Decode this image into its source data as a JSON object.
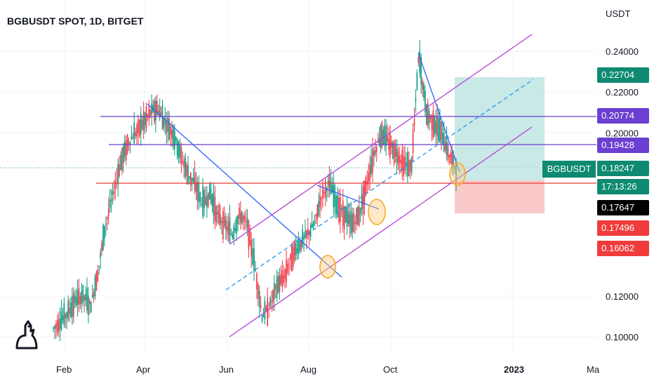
{
  "header": {
    "title": "BGBUSDT SPOT, 1D, BITGET",
    "unit": "USDT"
  },
  "chart_data": {
    "type": "candlestick",
    "y_axis_ticks": [
      "0.24000",
      "0.22000",
      "0.20000",
      "0.12000",
      "0.10000"
    ],
    "x_axis_ticks": [
      "Feb",
      "Apr",
      "Jun",
      "Aug",
      "Oct",
      "2023",
      "Ma"
    ],
    "price_labels": [
      {
        "name": "target",
        "text": "0.22704",
        "color": "#0e8a72"
      },
      {
        "name": "resistance-upper",
        "text": "0.20774",
        "color": "#6a3fd1"
      },
      {
        "name": "resistance-lower",
        "text": "0.19428",
        "color": "#6a3fd1"
      },
      {
        "name": "last-price",
        "text": "0.18247",
        "color": "#0e8a72"
      },
      {
        "name": "countdown",
        "text": "17:13:26",
        "color": "#0e8a72"
      },
      {
        "name": "crosshair",
        "text": "0.17647",
        "color": "#000000"
      },
      {
        "name": "support",
        "text": "0.17496",
        "color": "#ef3b3b"
      },
      {
        "name": "stop",
        "text": "0.16062",
        "color": "#ef3b3b"
      }
    ],
    "ticker_tag": "BGBUSDT",
    "series": [
      {
        "values_approx": [
          0.104,
          0.108,
          0.112,
          0.118,
          0.12,
          0.115,
          0.132,
          0.155,
          0.17,
          0.185,
          0.195,
          0.2,
          0.205,
          0.21,
          0.212,
          0.205,
          0.2,
          0.19,
          0.18,
          0.175,
          0.165,
          0.17,
          0.16,
          0.155,
          0.15,
          0.16,
          0.155,
          0.135,
          0.11,
          0.115,
          0.125,
          0.13,
          0.14,
          0.145,
          0.15,
          0.155,
          0.17,
          0.175,
          0.165,
          0.16,
          0.155,
          0.16,
          0.175,
          0.19,
          0.2,
          0.195,
          0.19,
          0.185,
          0.183,
          0.238,
          0.21,
          0.205,
          0.2,
          0.19,
          0.182
        ]
      }
    ],
    "colors": {
      "up": "#089981",
      "down": "#f23645"
    }
  }
}
